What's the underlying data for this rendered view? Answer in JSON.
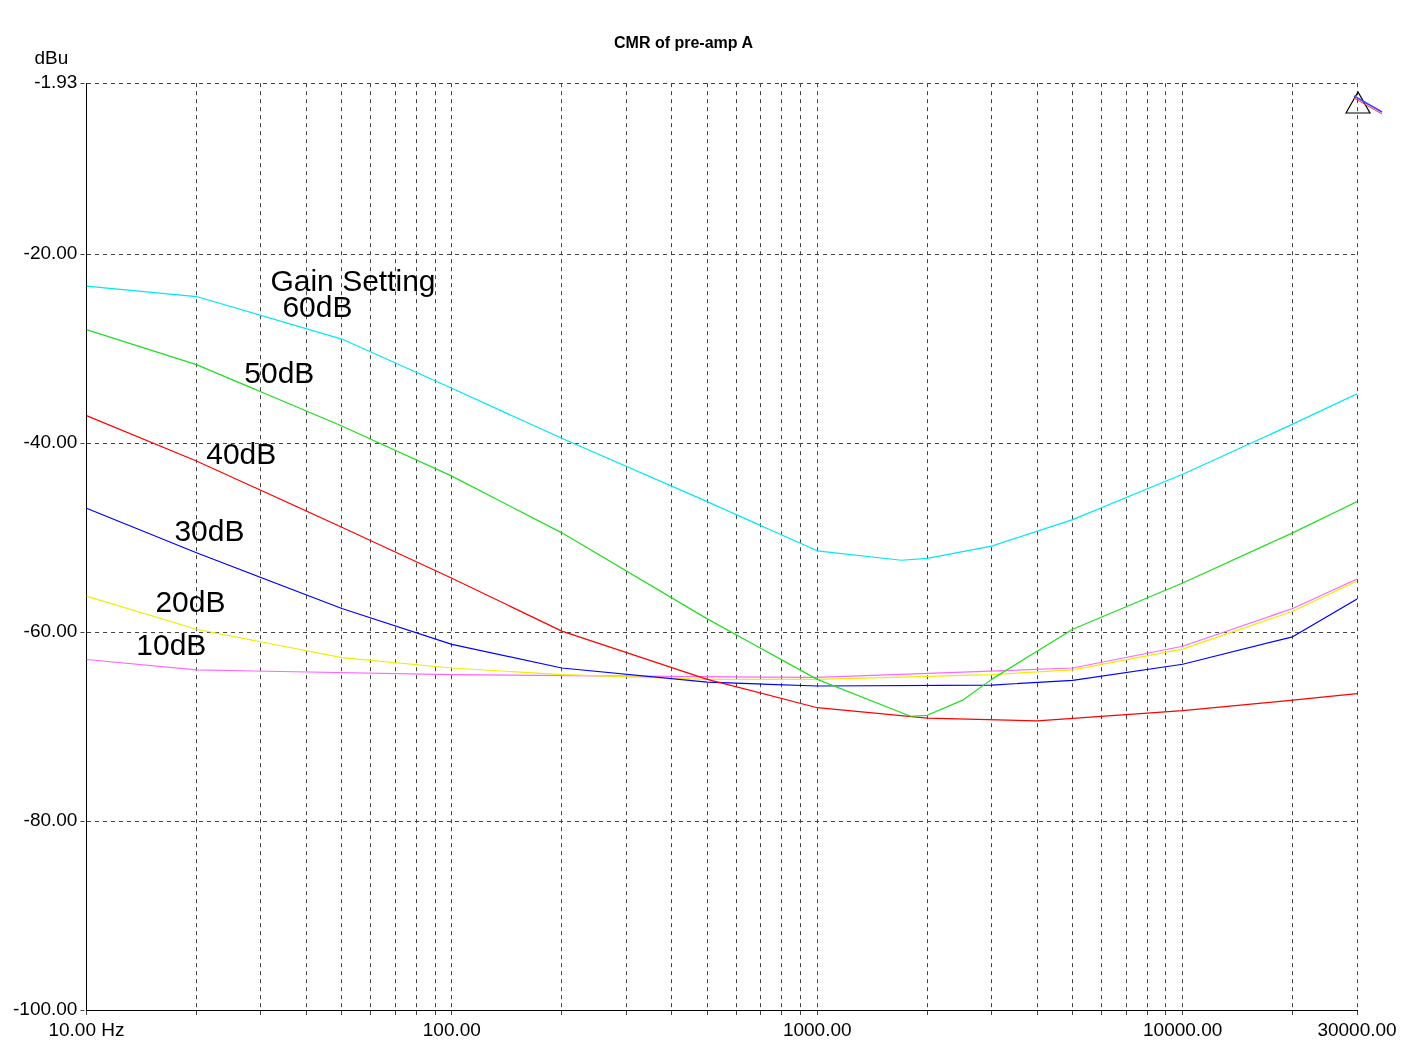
{
  "chart_data": {
    "type": "line",
    "title": "CMR of pre-amp A",
    "ylabel": "dBu",
    "legend_title": "Gain Setting",
    "series": [
      {
        "name": "60dB",
        "color": "#00e8f0",
        "x": [
          10,
          20,
          50,
          100,
          200,
          500,
          1000,
          1700,
          2000,
          3000,
          5000,
          10000,
          20000,
          30000
        ],
        "values": [
          -23.4,
          -24.5,
          -29,
          -34.2,
          -39.5,
          -46.2,
          -51.4,
          -52.4,
          -52.2,
          -50.9,
          -48.1,
          -43.3,
          -38,
          -34.8
        ]
      },
      {
        "name": "50dB",
        "color": "#22dd22",
        "x": [
          10,
          20,
          50,
          100,
          200,
          500,
          1000,
          1800,
          2000,
          2500,
          3000,
          5000,
          10000,
          20000,
          30000
        ],
        "values": [
          -28,
          -31.7,
          -38.2,
          -43.5,
          -49.5,
          -58.6,
          -65,
          -68.9,
          -68.8,
          -67.2,
          -65,
          -59.7,
          -54.8,
          -49.5,
          -46.2
        ]
      },
      {
        "name": "40dB",
        "color": "#ff0000",
        "x": [
          10,
          20,
          50,
          100,
          200,
          500,
          1000,
          2000,
          4000,
          10000,
          20000,
          30000
        ],
        "values": [
          -37.1,
          -41.9,
          -48.9,
          -54.3,
          -59.9,
          -65,
          -68,
          -69.1,
          -69.4,
          -68.3,
          -67.2,
          -66.5
        ]
      },
      {
        "name": "30dB",
        "color": "#0000ff",
        "x": [
          10,
          20,
          50,
          100,
          200,
          500,
          1000,
          3000,
          5000,
          10000,
          20000,
          30000
        ],
        "values": [
          -46.9,
          -51.6,
          -57.5,
          -61.3,
          -63.8,
          -65.3,
          -65.7,
          -65.6,
          -65.1,
          -63.4,
          -60.5,
          -56.5
        ]
      },
      {
        "name": "20dB",
        "color": "#eeee00",
        "x": [
          10,
          20,
          50,
          100,
          200,
          500,
          1000,
          3000,
          5000,
          10000,
          20000,
          30000
        ],
        "values": [
          -56.2,
          -59.7,
          -62.7,
          -63.8,
          -64.5,
          -65,
          -65,
          -64.5,
          -64,
          -61.8,
          -57.8,
          -54.6
        ]
      },
      {
        "name": "10dB",
        "color": "#ff66ff",
        "x": [
          10,
          20,
          100,
          1000,
          5000,
          10000,
          20000,
          30000
        ],
        "values": [
          -62.9,
          -64,
          -64.5,
          -64.8,
          -63.8,
          -61.5,
          -57.5,
          -54.4
        ]
      }
    ],
    "log": "x",
    "grid": true,
    "legend": false,
    "marker": "none",
    "line_style": "solid",
    "xlim": [
      10,
      30000
    ],
    "xticks": [
      {
        "value": 10,
        "label": "10.00 Hz"
      },
      {
        "value": 20,
        "label": null
      },
      {
        "value": 30,
        "label": null
      },
      {
        "value": 40,
        "label": null
      },
      {
        "value": 50,
        "label": null
      },
      {
        "value": 60,
        "label": null
      },
      {
        "value": 70,
        "label": null
      },
      {
        "value": 80,
        "label": null
      },
      {
        "value": 90,
        "label": null
      },
      {
        "value": 100,
        "label": "100.00"
      },
      {
        "value": 200,
        "label": null
      },
      {
        "value": 300,
        "label": null
      },
      {
        "value": 400,
        "label": null
      },
      {
        "value": 500,
        "label": null
      },
      {
        "value": 600,
        "label": null
      },
      {
        "value": 700,
        "label": null
      },
      {
        "value": 800,
        "label": null
      },
      {
        "value": 900,
        "label": null
      },
      {
        "value": 1000,
        "label": "1000.00"
      },
      {
        "value": 2000,
        "label": null
      },
      {
        "value": 3000,
        "label": null
      },
      {
        "value": 4000,
        "label": null
      },
      {
        "value": 5000,
        "label": null
      },
      {
        "value": 6000,
        "label": null
      },
      {
        "value": 7000,
        "label": null
      },
      {
        "value": 8000,
        "label": null
      },
      {
        "value": 9000,
        "label": null
      },
      {
        "value": 10000,
        "label": "10000.00"
      },
      {
        "value": 20000,
        "label": null
      },
      {
        "value": 30000,
        "label": "30000.00"
      }
    ],
    "ylim": [
      -100,
      -1.93
    ],
    "yticks": [
      -1.93,
      {
        "value": -20,
        "label": "-20.00"
      },
      {
        "value": -40,
        "label": "-40.00"
      },
      {
        "value": -60,
        "label": "-60.00"
      },
      {
        "value": -80,
        "label": "-80.00"
      },
      {
        "value": -100,
        "label": "-100.00"
      }
    ]
  }
}
